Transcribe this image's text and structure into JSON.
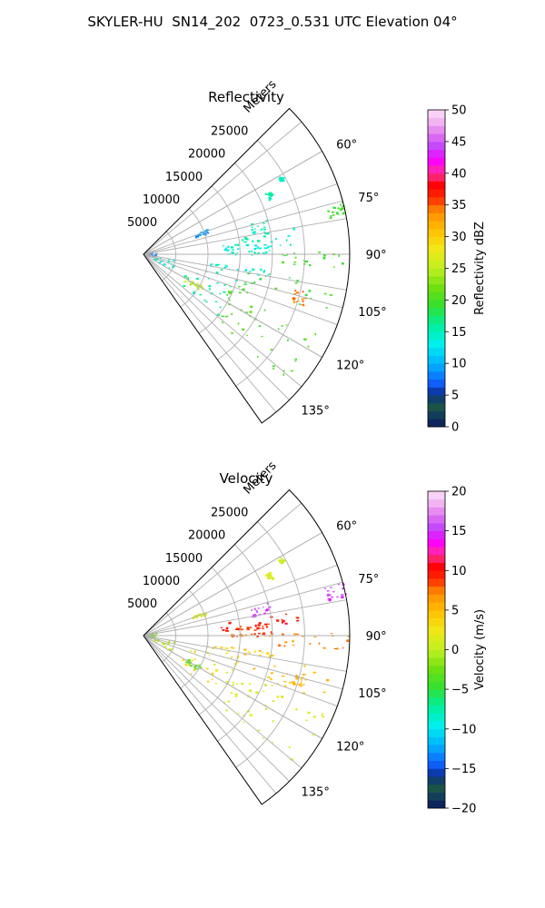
{
  "title": "SKYLER-HU  SN14_202  0723_0.531 UTC Elevation 04°",
  "colors": {
    "grid": "#b0b0b0",
    "axis": "#000000"
  },
  "chart_data": [
    {
      "type": "ppi",
      "title": "Reflectivity",
      "radial_axis_label": "Meters",
      "range_rings": [
        5000,
        10000,
        15000,
        20000,
        25000
      ],
      "range_ticks": [
        "5000",
        "10000",
        "15000",
        "20000",
        "25000"
      ],
      "max_range": 32000,
      "azimuth_range": [
        45,
        145
      ],
      "azimuth_ticks": [
        60,
        75,
        90,
        105,
        120,
        135
      ],
      "azimuth_tick_labels": [
        "60°",
        "75°",
        "90°",
        "105°",
        "120°",
        "135°"
      ],
      "colorbar": {
        "label": "Reflectivity dBZ",
        "min": 0,
        "max": 50,
        "ticks": [
          0,
          5,
          10,
          15,
          20,
          25,
          30,
          35,
          40,
          45,
          50
        ],
        "tick_labels": [
          "0",
          "5",
          "10",
          "15",
          "20",
          "25",
          "30",
          "35",
          "40",
          "45",
          "50"
        ]
      },
      "echo_regions": [
        {
          "az": [
            60,
            62
          ],
          "r": [
            24000,
            24600
          ],
          "value": 15
        },
        {
          "az": [
            63,
            66
          ],
          "r": [
            21000,
            22000
          ],
          "value": 16
        },
        {
          "az": [
            68,
            71
          ],
          "r": [
            8000,
            10500
          ],
          "value": 9
        },
        {
          "az": [
            74,
            80
          ],
          "r": [
            17000,
            20000
          ],
          "value": 15
        },
        {
          "az": [
            75,
            79
          ],
          "r": [
            29000,
            32000
          ],
          "value": 20
        },
        {
          "az": [
            80,
            86
          ],
          "r": [
            12000,
            24000
          ],
          "value": 15
        },
        {
          "az": [
            84,
            87
          ],
          "r": [
            12000,
            20000
          ],
          "value": 13
        },
        {
          "az": [
            88,
            90
          ],
          "r": [
            13000,
            20000
          ],
          "value": 15
        },
        {
          "az": [
            89,
            94
          ],
          "r": [
            20000,
            32000
          ],
          "value": 20
        },
        {
          "az": [
            99,
            130
          ],
          "r": [
            7000,
            15000
          ],
          "value": 16
        },
        {
          "az": [
            99,
            110
          ],
          "r": [
            15000,
            30000
          ],
          "value": 19
        },
        {
          "az": [
            103,
            108
          ],
          "r": [
            24000,
            26000
          ],
          "value": 34
        },
        {
          "az": [
            110,
            132
          ],
          "r": [
            14000,
            31000
          ],
          "value": 20
        },
        {
          "az": [
            118,
            123
          ],
          "r": [
            7500,
            10500
          ],
          "value": 25
        },
        {
          "az": [
            97,
            100
          ],
          "r": [
            10000,
            20000
          ],
          "value": 14
        },
        {
          "az": [
            100,
            118
          ],
          "r": [
            1500,
            5000
          ],
          "value": 14
        },
        {
          "az": [
            70,
            100
          ],
          "r": [
            300,
            2000
          ],
          "value": 8
        }
      ]
    },
    {
      "type": "ppi",
      "title": "Velocity",
      "radial_axis_label": "Meters",
      "range_rings": [
        5000,
        10000,
        15000,
        20000,
        25000
      ],
      "range_ticks": [
        "5000",
        "10000",
        "15000",
        "20000",
        "25000"
      ],
      "max_range": 32000,
      "azimuth_range": [
        45,
        145
      ],
      "azimuth_ticks": [
        60,
        75,
        90,
        105,
        120,
        135
      ],
      "azimuth_tick_labels": [
        "60°",
        "75°",
        "90°",
        "105°",
        "120°",
        "135°"
      ],
      "colorbar": {
        "label": "Velocity (m/s)",
        "min": -20,
        "max": 20,
        "ticks": [
          -20,
          -15,
          -10,
          -5,
          0,
          5,
          10,
          15,
          20
        ],
        "tick_labels": [
          "−20",
          "−15",
          "−10",
          "−5",
          "0",
          "5",
          "10",
          "15",
          "20"
        ]
      },
      "echo_regions": [
        {
          "az": [
            60,
            62
          ],
          "r": [
            24000,
            24600
          ],
          "value": 1
        },
        {
          "az": [
            63,
            66
          ],
          "r": [
            21000,
            22000
          ],
          "value": 1
        },
        {
          "az": [
            68,
            71
          ],
          "r": [
            8000,
            10500
          ],
          "value": 1
        },
        {
          "az": [
            74,
            80
          ],
          "r": [
            17000,
            20000
          ],
          "value": 15
        },
        {
          "az": [
            75,
            79
          ],
          "r": [
            29000,
            32000
          ],
          "value": 15
        },
        {
          "az": [
            80,
            86
          ],
          "r": [
            12000,
            24000
          ],
          "value": 10
        },
        {
          "az": [
            84,
            87
          ],
          "r": [
            12000,
            20000
          ],
          "value": 9
        },
        {
          "az": [
            88,
            90
          ],
          "r": [
            13000,
            20000
          ],
          "value": 8
        },
        {
          "az": [
            89,
            94
          ],
          "r": [
            20000,
            32000
          ],
          "value": 7
        },
        {
          "az": [
            99,
            130
          ],
          "r": [
            7000,
            15000
          ],
          "value": 3
        },
        {
          "az": [
            99,
            110
          ],
          "r": [
            15000,
            30000
          ],
          "value": 5
        },
        {
          "az": [
            103,
            108
          ],
          "r": [
            24000,
            26000
          ],
          "value": 6
        },
        {
          "az": [
            110,
            132
          ],
          "r": [
            14000,
            31000
          ],
          "value": 1
        },
        {
          "az": [
            118,
            123
          ],
          "r": [
            7500,
            10500
          ],
          "value": -3
        },
        {
          "az": [
            97,
            100
          ],
          "r": [
            10000,
            20000
          ],
          "value": 4
        },
        {
          "az": [
            100,
            118
          ],
          "r": [
            1500,
            5000
          ],
          "value": 0
        },
        {
          "az": [
            70,
            100
          ],
          "r": [
            300,
            2000
          ],
          "value": -2
        }
      ]
    }
  ]
}
